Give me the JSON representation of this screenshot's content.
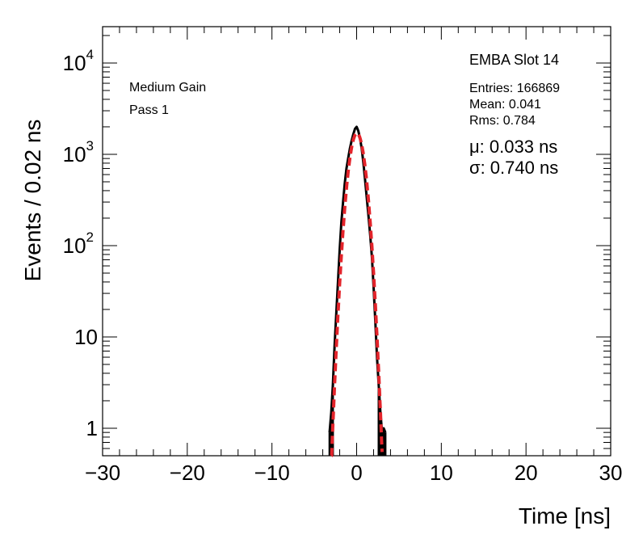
{
  "chart_data": {
    "type": "line",
    "title": "",
    "xlabel": "Time [ns]",
    "ylabel": "Events / 0.02 ns",
    "xlim": [
      -30,
      30
    ],
    "ylim": [
      0.5,
      25000
    ],
    "yscale": "log",
    "x_tick_labels": [
      "−30",
      "−20",
      "−10",
      "0",
      "10",
      "20",
      "30"
    ],
    "x_tick_values": [
      -30,
      -20,
      -10,
      0,
      10,
      20,
      30
    ],
    "y_tick_values": [
      1,
      10,
      100,
      1000,
      10000
    ],
    "y_tick_labels": [
      {
        "base": "1",
        "exp": ""
      },
      {
        "base": "10",
        "exp": ""
      },
      {
        "base": "10",
        "exp": "2"
      },
      {
        "base": "10",
        "exp": "3"
      },
      {
        "base": "10",
        "exp": "4"
      }
    ],
    "annotations": {
      "gain": "Medium Gain",
      "pass": "Pass 1",
      "slot": "EMBA Slot 14",
      "entries": "Entries: 166869",
      "mean": "Mean: 0.041",
      "rms": "Rms: 0.784",
      "mu": "μ: 0.033 ns",
      "sigma": "σ: 0.740 ns"
    },
    "series": [
      {
        "name": "histogram",
        "color": "#000000",
        "x": [
          -3.2,
          -3.0,
          -2.8,
          -2.6,
          -2.4,
          -2.2,
          -2.0,
          -1.8,
          -1.6,
          -1.4,
          -1.2,
          -1.0,
          -0.8,
          -0.6,
          -0.4,
          -0.2,
          0.0,
          0.2,
          0.4,
          0.6,
          0.8,
          1.0,
          1.2,
          1.4,
          1.6,
          1.8,
          2.0,
          2.2,
          2.4,
          2.6,
          2.8,
          3.0,
          3.2,
          3.4
        ],
        "y": [
          0.9,
          1.5,
          3,
          8,
          18,
          40,
          90,
          180,
          300,
          480,
          700,
          900,
          1150,
          1400,
          1650,
          1900,
          2000,
          1800,
          1500,
          1150,
          800,
          520,
          330,
          210,
          130,
          75,
          35,
          15,
          6,
          3,
          1.5,
          0.9,
          1,
          0.9
        ]
      },
      {
        "name": "gaussian fit",
        "color": "#e3242b",
        "style": "dashed",
        "mu": 0.033,
        "sigma": 0.74,
        "peak": 1700,
        "x_range": [
          -3.0,
          3.0
        ]
      }
    ]
  }
}
